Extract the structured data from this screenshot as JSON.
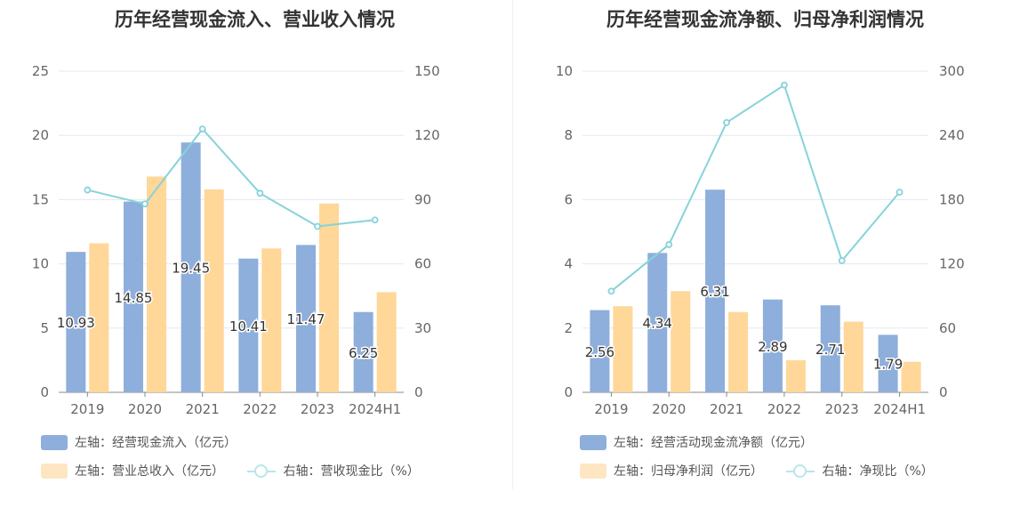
{
  "colors": {
    "bar1": "#8eaedb",
    "bar2": "#fed799",
    "line": "#86d3d9",
    "grid": "#e3e8f0",
    "axis": "#888888",
    "text": "#666666"
  },
  "chart_data": [
    {
      "type": "bar",
      "title": "历年经营现金流入、营业收入情况",
      "categories": [
        "2019",
        "2020",
        "2021",
        "2022",
        "2023",
        "2024H1"
      ],
      "ylim_left": [
        0,
        25
      ],
      "yticks_left": [
        "0",
        "5",
        "10",
        "15",
        "20",
        "25"
      ],
      "ylim_right": [
        0,
        150
      ],
      "yticks_right": [
        "0",
        "30",
        "60",
        "90",
        "120",
        "150"
      ],
      "bar_series": [
        {
          "name": "左轴：经营现金流入（亿元）",
          "values": [
            10.93,
            14.85,
            19.45,
            10.41,
            11.47,
            6.25
          ],
          "labels": [
            "10.93",
            "14.85",
            "19.45",
            "10.41",
            "11.47",
            "6.25"
          ]
        },
        {
          "name": "左轴：营业总收入（亿元）",
          "values": [
            11.6,
            16.8,
            15.8,
            11.2,
            14.7,
            7.8
          ]
        }
      ],
      "line_series": {
        "name": "右轴：营收现金比（%）",
        "values": [
          94.5,
          88.0,
          123.0,
          93.0,
          77.5,
          80.5
        ]
      }
    },
    {
      "type": "bar",
      "title": "历年经营现金流净额、归母净利润情况",
      "categories": [
        "2019",
        "2020",
        "2021",
        "2022",
        "2023",
        "2024H1"
      ],
      "ylim_left": [
        0,
        10
      ],
      "yticks_left": [
        "0",
        "2",
        "4",
        "6",
        "8",
        "10"
      ],
      "ylim_right": [
        0,
        300
      ],
      "yticks_right": [
        "0",
        "60",
        "120",
        "180",
        "240",
        "300"
      ],
      "bar_series": [
        {
          "name": "左轴：经营活动现金流净额（亿元）",
          "values": [
            2.56,
            4.34,
            6.31,
            2.89,
            2.71,
            1.79
          ],
          "labels": [
            "2.56",
            "4.34",
            "6.31",
            "2.89",
            "2.71",
            "1.79"
          ]
        },
        {
          "name": "左轴：归母净利润（亿元）",
          "values": [
            2.68,
            3.15,
            2.5,
            1.0,
            2.2,
            0.95
          ]
        }
      ],
      "line_series": {
        "name": "右轴：净现比（%）",
        "values": [
          94.5,
          138.0,
          252.0,
          287.0,
          123.0,
          187.0
        ]
      }
    }
  ]
}
